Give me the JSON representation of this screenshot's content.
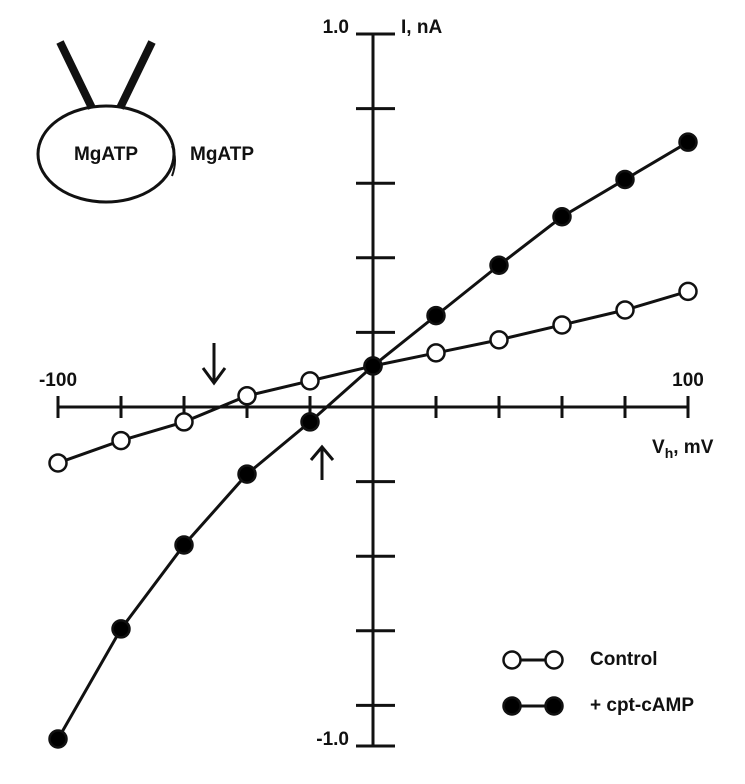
{
  "chart_data": {
    "type": "line",
    "x_label": [
      "V",
      "h",
      ", mV"
    ],
    "y_label": "I, nA",
    "x": [
      -100,
      -80,
      -60,
      -40,
      -20,
      0,
      20,
      40,
      60,
      80,
      100
    ],
    "series": [
      {
        "name": "Control",
        "color": "#ffffff",
        "values": [
          -0.15,
          -0.09,
          -0.04,
          0.03,
          0.07,
          0.11,
          0.145,
          0.18,
          0.22,
          0.26,
          0.31
        ]
      },
      {
        "name": "+ cpt-cAMP",
        "color": "#000000",
        "values": [
          -0.89,
          -0.595,
          -0.37,
          -0.18,
          -0.04,
          0.11,
          0.245,
          0.38,
          0.51,
          0.61,
          0.71
        ]
      }
    ],
    "xlim": [
      -100,
      100
    ],
    "xticks": [
      -100,
      -80,
      -60,
      -40,
      -20,
      20,
      40,
      60,
      80,
      100
    ],
    "ylim": [
      -1,
      1
    ],
    "yticks": [
      {
        "value": -1,
        "label": "-1.0"
      },
      -0.8,
      -0.6,
      -0.4,
      -0.2,
      0.2,
      0.4,
      0.6,
      0.8,
      {
        "value": 1,
        "label": "1.0"
      }
    ],
    "inset": {
      "inside_label": "MgATP",
      "outside_label": "MgATP"
    }
  }
}
